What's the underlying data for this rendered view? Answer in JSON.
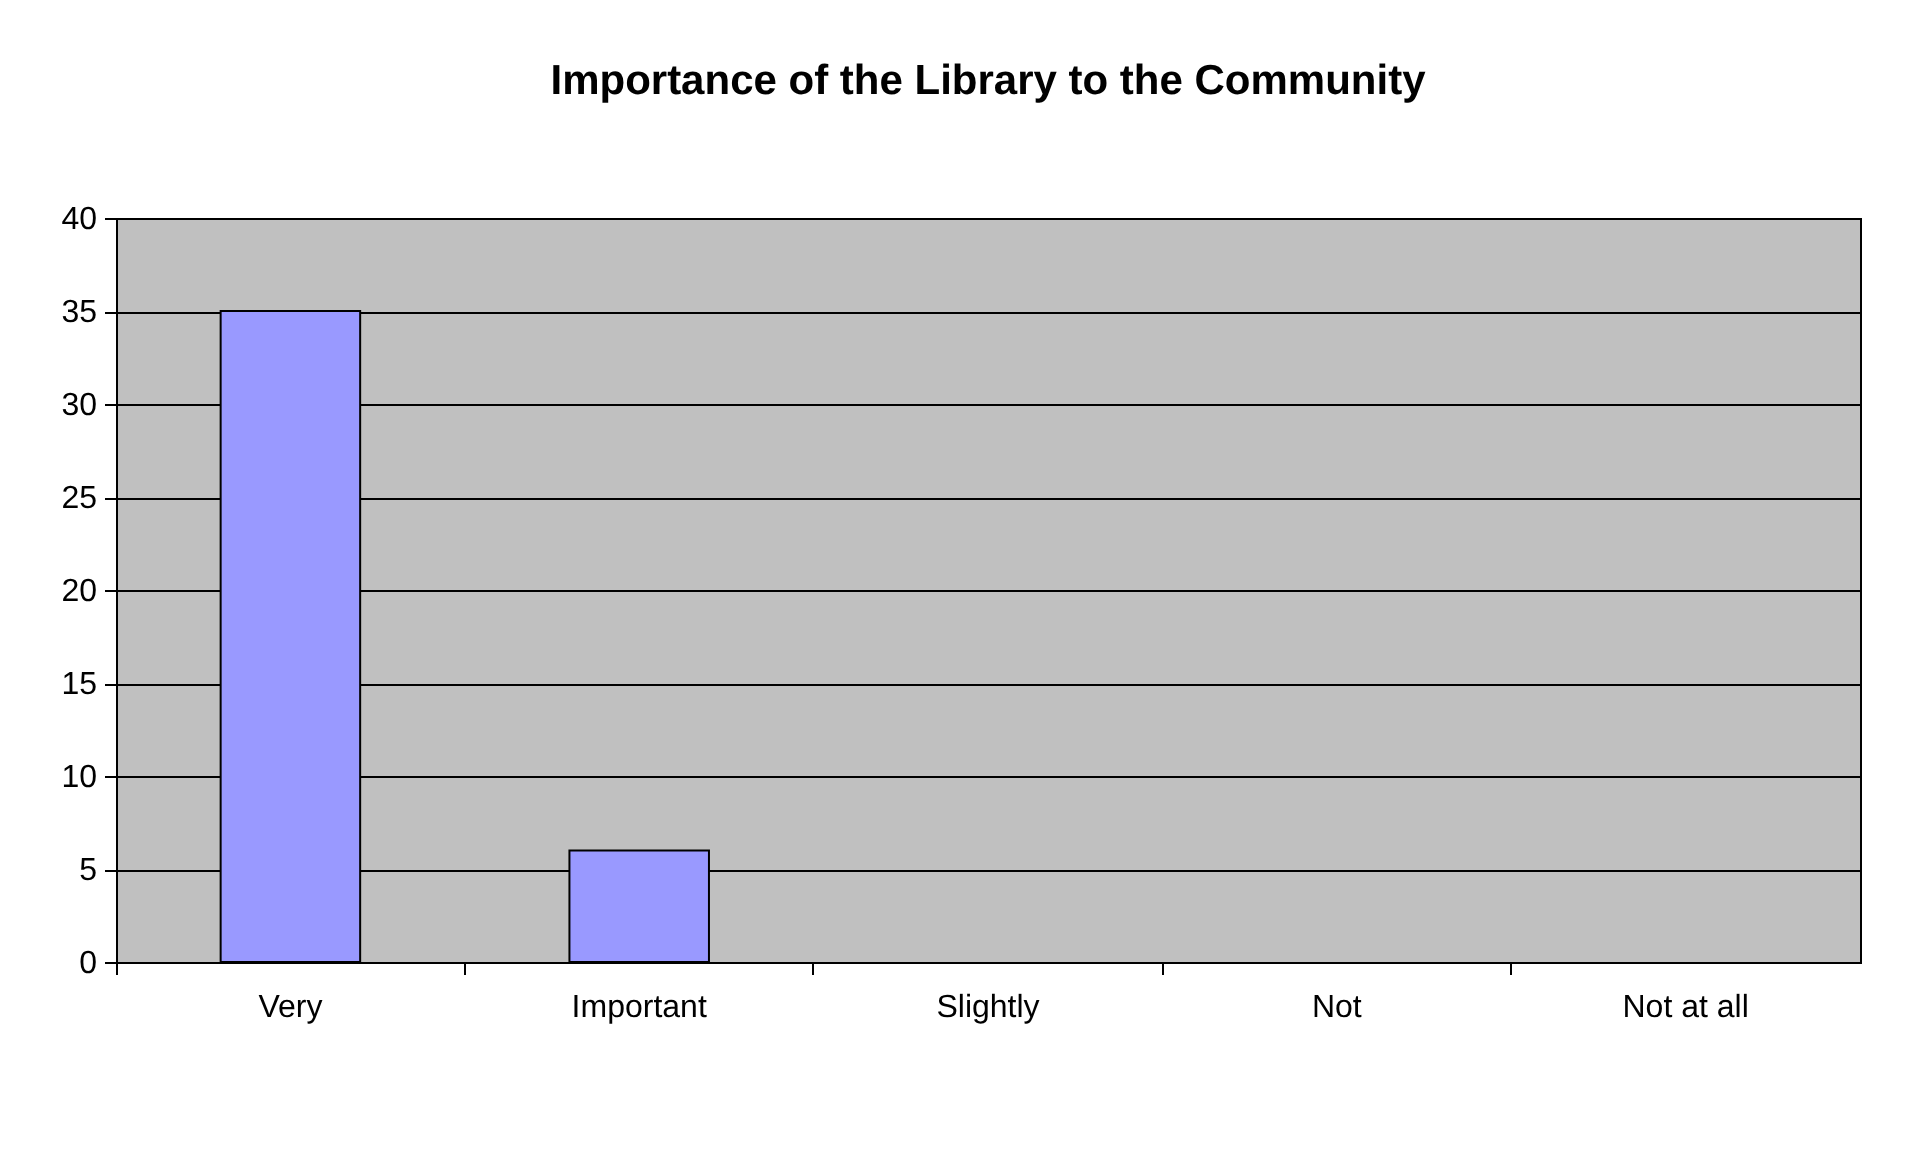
{
  "chart_data": {
    "type": "bar",
    "title": "Importance of the Library to the Community",
    "categories": [
      "Very",
      "Important",
      "Slightly",
      "Not",
      "Not at all"
    ],
    "values": [
      35,
      6,
      0,
      0,
      0
    ],
    "color": "#9999ff",
    "ylim": [
      0,
      40
    ],
    "yticks": [
      0,
      5,
      10,
      15,
      20,
      25,
      30,
      35,
      40
    ],
    "grid": "y",
    "legend": false
  }
}
